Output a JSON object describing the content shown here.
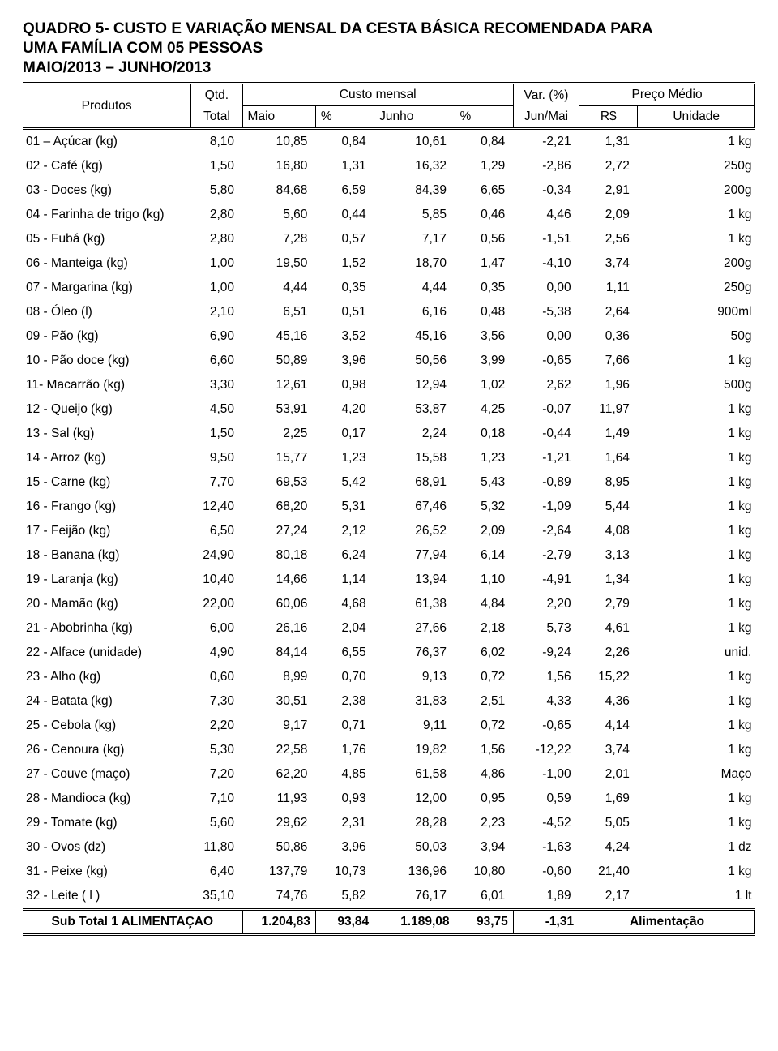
{
  "title_lines": [
    "QUADRO 5- CUSTO E VARIAÇÃO MENSAL DA CESTA BÁSICA RECOMENDADA PARA",
    "UMA FAMÍLIA COM 05 PESSOAS",
    "MAIO/2013 – JUNHO/2013"
  ],
  "colors": {
    "text": "#000000",
    "background": "#ffffff",
    "rule": "#000000"
  },
  "typography": {
    "title_fontsize_pt": 14,
    "body_fontsize_pt": 12,
    "font_family": "Arial"
  },
  "header": {
    "produtos": "Produtos",
    "qtd_line1": "Qtd.",
    "qtd_line2": "Total",
    "custo_mensal": "Custo mensal",
    "maio": "Maio",
    "pct": "%",
    "junho": "Junho",
    "var_line1": "Var. (%)",
    "var_line2": "Jun/Mai",
    "preco_medio": "Preço Médio",
    "rs": "R$",
    "unidade": "Unidade"
  },
  "rows": [
    {
      "produto": "01 – Açúcar (kg)",
      "qtd": "8,10",
      "maio": "10,85",
      "p1": "0,84",
      "junho": "10,61",
      "p2": "0,84",
      "var": "-2,21",
      "rs": "1,31",
      "un": "1 kg"
    },
    {
      "produto": "02 - Café (kg)",
      "qtd": "1,50",
      "maio": "16,80",
      "p1": "1,31",
      "junho": "16,32",
      "p2": "1,29",
      "var": "-2,86",
      "rs": "2,72",
      "un": "250g"
    },
    {
      "produto": "03 - Doces (kg)",
      "qtd": "5,80",
      "maio": "84,68",
      "p1": "6,59",
      "junho": "84,39",
      "p2": "6,65",
      "var": "-0,34",
      "rs": "2,91",
      "un": "200g"
    },
    {
      "produto": "04 -  Farinha de trigo (kg)",
      "qtd": "2,80",
      "maio": "5,60",
      "p1": "0,44",
      "junho": "5,85",
      "p2": "0,46",
      "var": "4,46",
      "rs": "2,09",
      "un": "1 kg"
    },
    {
      "produto": "05 - Fubá (kg)",
      "qtd": "2,80",
      "maio": "7,28",
      "p1": "0,57",
      "junho": "7,17",
      "p2": "0,56",
      "var": "-1,51",
      "rs": "2,56",
      "un": "1 kg"
    },
    {
      "produto": "06 - Manteiga (kg)",
      "qtd": "1,00",
      "maio": "19,50",
      "p1": "1,52",
      "junho": "18,70",
      "p2": "1,47",
      "var": "-4,10",
      "rs": "3,74",
      "un": "200g"
    },
    {
      "produto": "07 - Margarina (kg)",
      "qtd": "1,00",
      "maio": "4,44",
      "p1": "0,35",
      "junho": "4,44",
      "p2": "0,35",
      "var": "0,00",
      "rs": "1,11",
      "un": "250g"
    },
    {
      "produto": "08 - Óleo (l)",
      "qtd": "2,10",
      "maio": "6,51",
      "p1": "0,51",
      "junho": "6,16",
      "p2": "0,48",
      "var": "-5,38",
      "rs": "2,64",
      "un": "900ml"
    },
    {
      "produto": "09 - Pão (kg)",
      "qtd": "6,90",
      "maio": "45,16",
      "p1": "3,52",
      "junho": "45,16",
      "p2": "3,56",
      "var": "0,00",
      "rs": "0,36",
      "un": "50g"
    },
    {
      "produto": "10 - Pão doce (kg)",
      "qtd": "6,60",
      "maio": "50,89",
      "p1": "3,96",
      "junho": "50,56",
      "p2": "3,99",
      "var": "-0,65",
      "rs": "7,66",
      "un": "1 kg"
    },
    {
      "produto": "11- Macarrão (kg)",
      "qtd": "3,30",
      "maio": "12,61",
      "p1": "0,98",
      "junho": "12,94",
      "p2": "1,02",
      "var": "2,62",
      "rs": "1,96",
      "un": "500g"
    },
    {
      "produto": "12 - Queijo (kg)",
      "qtd": "4,50",
      "maio": "53,91",
      "p1": "4,20",
      "junho": "53,87",
      "p2": "4,25",
      "var": "-0,07",
      "rs": "11,97",
      "un": "1 kg"
    },
    {
      "produto": "13 - Sal (kg)",
      "qtd": "1,50",
      "maio": "2,25",
      "p1": "0,17",
      "junho": "2,24",
      "p2": "0,18",
      "var": "-0,44",
      "rs": "1,49",
      "un": "1 kg"
    },
    {
      "produto": "14 - Arroz (kg)",
      "qtd": "9,50",
      "maio": "15,77",
      "p1": "1,23",
      "junho": "15,58",
      "p2": "1,23",
      "var": "-1,21",
      "rs": "1,64",
      "un": "1 kg"
    },
    {
      "produto": "15 - Carne (kg)",
      "qtd": "7,70",
      "maio": "69,53",
      "p1": "5,42",
      "junho": "68,91",
      "p2": "5,43",
      "var": "-0,89",
      "rs": "8,95",
      "un": "1 kg"
    },
    {
      "produto": "16 - Frango (kg)",
      "qtd": "12,40",
      "maio": "68,20",
      "p1": "5,31",
      "junho": "67,46",
      "p2": "5,32",
      "var": "-1,09",
      "rs": "5,44",
      "un": "1 kg"
    },
    {
      "produto": "17 - Feijão (kg)",
      "qtd": "6,50",
      "maio": "27,24",
      "p1": "2,12",
      "junho": "26,52",
      "p2": "2,09",
      "var": "-2,64",
      "rs": "4,08",
      "un": "1 kg"
    },
    {
      "produto": "18 - Banana (kg)",
      "qtd": "24,90",
      "maio": "80,18",
      "p1": "6,24",
      "junho": "77,94",
      "p2": "6,14",
      "var": "-2,79",
      "rs": "3,13",
      "un": "1 kg"
    },
    {
      "produto": "19 - Laranja (kg)",
      "qtd": "10,40",
      "maio": "14,66",
      "p1": "1,14",
      "junho": "13,94",
      "p2": "1,10",
      "var": "-4,91",
      "rs": "1,34",
      "un": "1 kg"
    },
    {
      "produto": "20 - Mamão (kg)",
      "qtd": "22,00",
      "maio": "60,06",
      "p1": "4,68",
      "junho": "61,38",
      "p2": "4,84",
      "var": "2,20",
      "rs": "2,79",
      "un": "1 kg"
    },
    {
      "produto": "21 - Abobrinha (kg)",
      "qtd": "6,00",
      "maio": "26,16",
      "p1": "2,04",
      "junho": "27,66",
      "p2": "2,18",
      "var": "5,73",
      "rs": "4,61",
      "un": "1 kg"
    },
    {
      "produto": "22 - Alface (unidade)",
      "qtd": "4,90",
      "maio": "84,14",
      "p1": "6,55",
      "junho": "76,37",
      "p2": "6,02",
      "var": "-9,24",
      "rs": "2,26",
      "un": "unid."
    },
    {
      "produto": "23 - Alho (kg)",
      "qtd": "0,60",
      "maio": "8,99",
      "p1": "0,70",
      "junho": "9,13",
      "p2": "0,72",
      "var": "1,56",
      "rs": "15,22",
      "un": "1 kg"
    },
    {
      "produto": "24 - Batata (kg)",
      "qtd": "7,30",
      "maio": "30,51",
      "p1": "2,38",
      "junho": "31,83",
      "p2": "2,51",
      "var": "4,33",
      "rs": "4,36",
      "un": "1 kg"
    },
    {
      "produto": "25 - Cebola (kg)",
      "qtd": "2,20",
      "maio": "9,17",
      "p1": "0,71",
      "junho": "9,11",
      "p2": "0,72",
      "var": "-0,65",
      "rs": "4,14",
      "un": "1 kg"
    },
    {
      "produto": "26 - Cenoura (kg)",
      "qtd": "5,30",
      "maio": "22,58",
      "p1": "1,76",
      "junho": "19,82",
      "p2": "1,56",
      "var": "-12,22",
      "rs": "3,74",
      "un": "1 kg"
    },
    {
      "produto": "27 - Couve (maço)",
      "qtd": "7,20",
      "maio": "62,20",
      "p1": "4,85",
      "junho": "61,58",
      "p2": "4,86",
      "var": "-1,00",
      "rs": "2,01",
      "un": "Maço"
    },
    {
      "produto": "28 - Mandioca (kg)",
      "qtd": "7,10",
      "maio": "11,93",
      "p1": "0,93",
      "junho": "12,00",
      "p2": "0,95",
      "var": "0,59",
      "rs": "1,69",
      "un": "1 kg"
    },
    {
      "produto": "29 - Tomate (kg)",
      "qtd": "5,60",
      "maio": "29,62",
      "p1": "2,31",
      "junho": "28,28",
      "p2": "2,23",
      "var": "-4,52",
      "rs": "5,05",
      "un": "1 kg"
    },
    {
      "produto": "30 - Ovos (dz)",
      "qtd": "11,80",
      "maio": "50,86",
      "p1": "3,96",
      "junho": "50,03",
      "p2": "3,94",
      "var": "-1,63",
      "rs": "4,24",
      "un": "1 dz"
    },
    {
      "produto": "31 - Peixe (kg)",
      "qtd": "6,40",
      "maio": "137,79",
      "p1": "10,73",
      "junho": "136,96",
      "p2": "10,80",
      "var": "-0,60",
      "rs": "21,40",
      "un": "1 kg"
    },
    {
      "produto": "32 - Leite ( l )",
      "qtd": "35,10",
      "maio": "74,76",
      "p1": "5,82",
      "junho": "76,17",
      "p2": "6,01",
      "var": "1,89",
      "rs": "2,17",
      "un": "1 lt"
    }
  ],
  "footer": {
    "label": "Sub Total 1 ALIMENTAÇAO",
    "maio": "1.204,83",
    "p1": "93,84",
    "junho": "1.189,08",
    "p2": "93,75",
    "var": "-1,31",
    "unit": "Alimentação"
  }
}
